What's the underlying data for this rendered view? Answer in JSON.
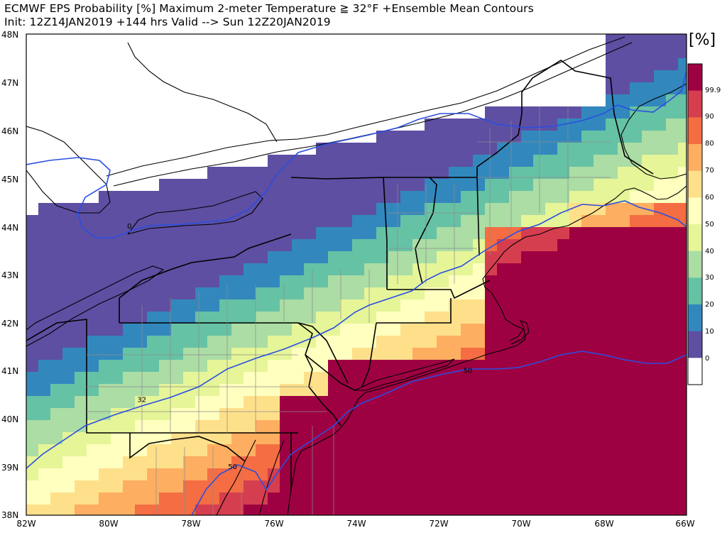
{
  "title": {
    "line1": "ECMWF EPS Probability [%] Maximum 2-meter Temperature ≧ 32°F   +Ensemble Mean Contours",
    "line2": "Init: 12Z14JAN2019 +144 hrs Valid --> Sun 12Z20JAN2019"
  },
  "map": {
    "lat_labels": [
      "48N",
      "47N",
      "46N",
      "45N",
      "44N",
      "43N",
      "42N",
      "41N",
      "40N",
      "39N",
      "38N"
    ],
    "lon_labels": [
      "82W",
      "80W",
      "78W",
      "76W",
      "74W",
      "72W",
      "70W",
      "68W",
      "66W"
    ],
    "region": "Northeastern United States",
    "contour_labels": [
      {
        "text": "0",
        "lon": -79.5,
        "lat": 44.0
      },
      {
        "text": "32",
        "lon": -79.2,
        "lat": 40.4
      },
      {
        "text": "50",
        "lon": -77.0,
        "lat": 39.0
      },
      {
        "text": "50",
        "lon": -71.3,
        "lat": 41.0
      }
    ]
  },
  "colorbar": {
    "unit_label": "[%]",
    "levels": [
      "99.9",
      "90",
      "80",
      "70",
      "60",
      "50",
      "40",
      "30",
      "20",
      "10",
      "0"
    ],
    "colors": {
      "c0": "#ffffff",
      "c10": "#5e4fa2",
      "c20": "#3288bd",
      "c30": "#66c2a5",
      "c40": "#abdda4",
      "c50": "#e6f598",
      "c60": "#ffffbf",
      "c70": "#fee08b",
      "c80": "#fdae61",
      "c90": "#f46d43",
      "c99": "#d53e4f",
      "c100": "#9e0142"
    }
  },
  "colors": {
    "contour_line": "#2a4ee0",
    "state_border": "#000000",
    "county_border": "#8c8c8c",
    "coast": "#000000"
  }
}
